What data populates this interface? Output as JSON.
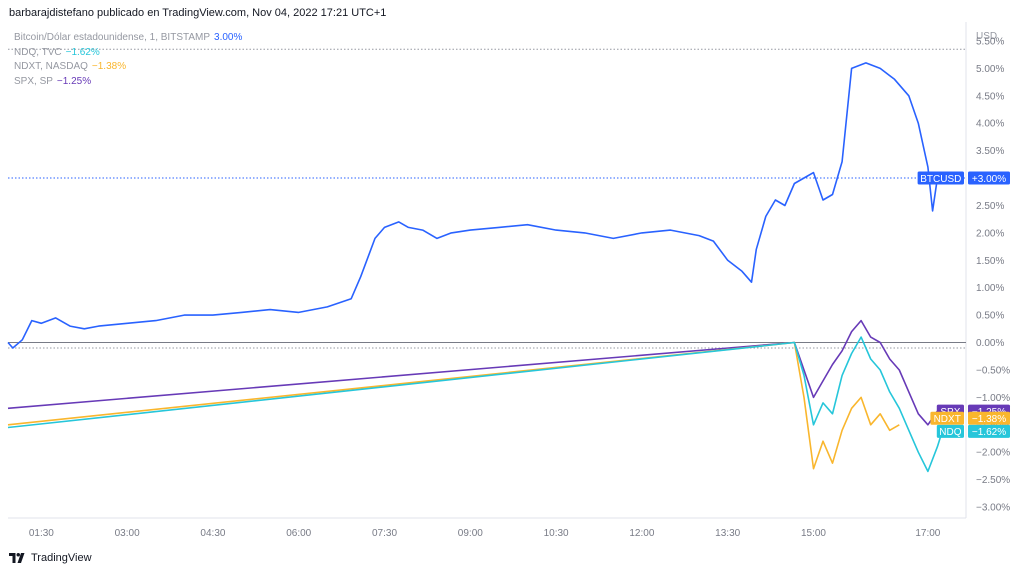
{
  "header": {
    "publisher_text": "barbarajdistefano publicado en TradingView.com, Nov 04, 2022 17:21 UTC+1"
  },
  "footer": {
    "brand_label": "TradingView",
    "logo_icon": "tradingview-logo-icon"
  },
  "legend": [
    {
      "symbol_text": "Bitcoin/Dólar estadounidense, 1, BITSTAMP",
      "value_text": "3.00%",
      "color": "#2962ff"
    },
    {
      "symbol_text": "NDQ, TVC",
      "value_text": "−1.62%",
      "color": "#26c6da"
    },
    {
      "symbol_text": "NDXT, NASDAQ",
      "value_text": "−1.38%",
      "color": "#f9b62d"
    },
    {
      "symbol_text": "SPX, SP",
      "value_text": "−1.25%",
      "color": "#673ab7"
    }
  ],
  "chart_data": {
    "type": "line",
    "currency_label": "USD",
    "ylim": [
      -3.2,
      5.7
    ],
    "y_ticks": [
      5.5,
      5.0,
      4.5,
      4.0,
      3.5,
      3.0,
      2.5,
      2.0,
      1.5,
      1.0,
      0.5,
      0.0,
      -0.5,
      -1.0,
      -1.5,
      -2.0,
      -2.5,
      -3.0
    ],
    "y_tick_labels": [
      "5.50%",
      "5.00%",
      "4.50%",
      "4.00%",
      "3.50%",
      "3.00%",
      "2.50%",
      "2.00%",
      "1.50%",
      "1.00%",
      "0.50%",
      "0.00%",
      "−0.50%",
      "−1.00%",
      "−1.50%",
      "−2.00%",
      "−2.50%",
      "−3.00%"
    ],
    "xlim": [
      "00:55",
      "17:40"
    ],
    "x_ticks": [
      "01:30",
      "03:00",
      "04:30",
      "06:00",
      "07:30",
      "09:00",
      "10:30",
      "12:00",
      "13:30",
      "15:00",
      "17:00"
    ],
    "grid": false,
    "reference_lines": [
      {
        "y": 0.0,
        "style": "solid",
        "color": "#787b86"
      },
      {
        "y": -0.1,
        "style": "dotted",
        "color": "#9598a1"
      },
      {
        "y": 5.35,
        "style": "dotted",
        "color": "#9598a1"
      },
      {
        "y": 3.0,
        "style": "dotted",
        "color": "#2962ff"
      }
    ],
    "series": [
      {
        "name": "BTCUSD",
        "color": "#2962ff",
        "badge_text": "+3.00%",
        "badge_value": 3.0,
        "points": [
          [
            "00:55",
            0.0
          ],
          [
            "01:00",
            -0.1
          ],
          [
            "01:10",
            0.05
          ],
          [
            "01:20",
            0.4
          ],
          [
            "01:30",
            0.35
          ],
          [
            "01:45",
            0.45
          ],
          [
            "02:00",
            0.3
          ],
          [
            "02:15",
            0.25
          ],
          [
            "02:30",
            0.3
          ],
          [
            "03:00",
            0.35
          ],
          [
            "03:30",
            0.4
          ],
          [
            "04:00",
            0.5
          ],
          [
            "04:30",
            0.5
          ],
          [
            "05:00",
            0.55
          ],
          [
            "05:30",
            0.6
          ],
          [
            "06:00",
            0.55
          ],
          [
            "06:30",
            0.65
          ],
          [
            "06:55",
            0.8
          ],
          [
            "07:05",
            1.2
          ],
          [
            "07:20",
            1.9
          ],
          [
            "07:30",
            2.1
          ],
          [
            "07:45",
            2.2
          ],
          [
            "07:55",
            2.1
          ],
          [
            "08:10",
            2.05
          ],
          [
            "08:25",
            1.9
          ],
          [
            "08:40",
            2.0
          ],
          [
            "09:00",
            2.05
          ],
          [
            "09:30",
            2.1
          ],
          [
            "10:00",
            2.15
          ],
          [
            "10:30",
            2.05
          ],
          [
            "11:00",
            2.0
          ],
          [
            "11:30",
            1.9
          ],
          [
            "12:00",
            2.0
          ],
          [
            "12:30",
            2.05
          ],
          [
            "13:00",
            1.95
          ],
          [
            "13:15",
            1.85
          ],
          [
            "13:30",
            1.5
          ],
          [
            "13:45",
            1.3
          ],
          [
            "13:55",
            1.1
          ],
          [
            "14:00",
            1.7
          ],
          [
            "14:10",
            2.3
          ],
          [
            "14:20",
            2.6
          ],
          [
            "14:30",
            2.5
          ],
          [
            "14:40",
            2.9
          ],
          [
            "14:50",
            3.0
          ],
          [
            "15:00",
            3.1
          ],
          [
            "15:10",
            2.6
          ],
          [
            "15:20",
            2.7
          ],
          [
            "15:30",
            3.3
          ],
          [
            "15:40",
            5.0
          ],
          [
            "15:55",
            5.1
          ],
          [
            "16:10",
            5.0
          ],
          [
            "16:25",
            4.8
          ],
          [
            "16:40",
            4.5
          ],
          [
            "16:50",
            4.0
          ],
          [
            "17:00",
            3.2
          ],
          [
            "17:05",
            2.4
          ],
          [
            "17:10",
            3.0
          ],
          [
            "17:15",
            3.0
          ]
        ]
      },
      {
        "name": "SPX",
        "color": "#673ab7",
        "badge_text": "−1.25%",
        "badge_value": -1.25,
        "points": [
          [
            "00:55",
            -1.2
          ],
          [
            "14:40",
            0.0
          ],
          [
            "14:50",
            -0.5
          ],
          [
            "15:00",
            -1.0
          ],
          [
            "15:10",
            -0.7
          ],
          [
            "15:20",
            -0.4
          ],
          [
            "15:30",
            -0.15
          ],
          [
            "15:40",
            0.2
          ],
          [
            "15:50",
            0.4
          ],
          [
            "16:00",
            0.1
          ],
          [
            "16:10",
            0.0
          ],
          [
            "16:20",
            -0.3
          ],
          [
            "16:30",
            -0.5
          ],
          [
            "16:40",
            -0.9
          ],
          [
            "16:50",
            -1.3
          ],
          [
            "17:00",
            -1.5
          ],
          [
            "17:10",
            -1.25
          ]
        ]
      },
      {
        "name": "NDXT",
        "color": "#f9b62d",
        "badge_text": "−1.38%",
        "badge_value": -1.38,
        "points": [
          [
            "00:55",
            -1.5
          ],
          [
            "14:40",
            0.0
          ],
          [
            "14:50",
            -1.0
          ],
          [
            "15:00",
            -2.3
          ],
          [
            "15:10",
            -1.8
          ],
          [
            "15:20",
            -2.2
          ],
          [
            "15:30",
            -1.6
          ],
          [
            "15:40",
            -1.2
          ],
          [
            "15:50",
            -1.0
          ],
          [
            "16:00",
            -1.5
          ],
          [
            "16:10",
            -1.3
          ],
          [
            "16:20",
            -1.6
          ],
          [
            "16:30",
            -1.5
          ]
        ]
      },
      {
        "name": "NDQ",
        "color": "#26c6da",
        "badge_text": "−1.62%",
        "badge_value": -1.62,
        "points": [
          [
            "00:55",
            -1.55
          ],
          [
            "14:40",
            0.0
          ],
          [
            "14:50",
            -0.6
          ],
          [
            "15:00",
            -1.5
          ],
          [
            "15:10",
            -1.1
          ],
          [
            "15:20",
            -1.3
          ],
          [
            "15:30",
            -0.6
          ],
          [
            "15:40",
            -0.2
          ],
          [
            "15:50",
            0.1
          ],
          [
            "16:00",
            -0.3
          ],
          [
            "16:10",
            -0.5
          ],
          [
            "16:20",
            -0.9
          ],
          [
            "16:30",
            -1.2
          ],
          [
            "16:40",
            -1.6
          ],
          [
            "16:50",
            -2.0
          ],
          [
            "17:00",
            -2.35
          ],
          [
            "17:10",
            -1.9
          ],
          [
            "17:15",
            -1.62
          ]
        ]
      }
    ]
  }
}
